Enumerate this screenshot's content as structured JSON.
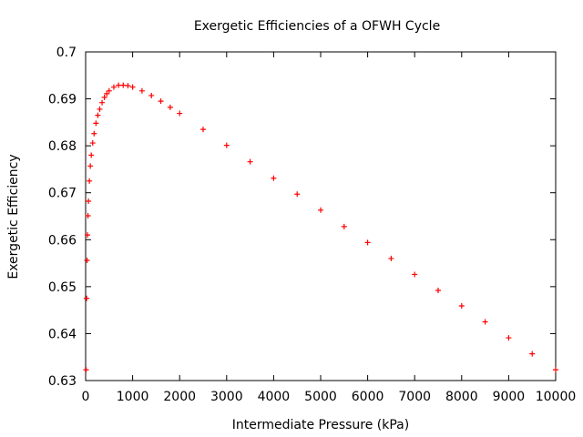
{
  "chart_data": {
    "type": "scatter",
    "title": "Exergetic Efficiencies of a OFWH Cycle",
    "xlabel": "Intermediate Pressure (kPa)",
    "ylabel": "Exergetic Efficiency",
    "xlim": [
      0,
      10000
    ],
    "ylim": [
      0.63,
      0.7
    ],
    "xticks": [
      0,
      1000,
      2000,
      3000,
      4000,
      5000,
      6000,
      7000,
      8000,
      9000,
      10000
    ],
    "yticks": [
      0.63,
      0.64,
      0.65,
      0.66,
      0.67,
      0.68,
      0.69,
      0.7
    ],
    "ytick_labels": [
      "0.63",
      "0.64",
      "0.65",
      "0.66",
      "0.67",
      "0.68",
      "0.69",
      "0.7"
    ],
    "grid": false,
    "legend": "none",
    "marker": "+",
    "marker_color": "#ff0000",
    "series": [
      {
        "x": [
          10,
          20,
          30,
          40,
          50,
          60,
          80,
          100,
          120,
          150,
          180,
          220,
          260,
          300,
          350,
          400,
          450,
          500,
          600,
          700,
          800,
          900,
          1000,
          1200,
          1400,
          1600,
          1800,
          2000,
          2500,
          3000,
          3500,
          4000,
          4500,
          5000,
          5500,
          6000,
          6500,
          7000,
          7500,
          8000,
          8500,
          9000,
          9500,
          10000
        ],
        "y": [
          0.6323,
          0.6475,
          0.6556,
          0.661,
          0.6651,
          0.6682,
          0.6725,
          0.6757,
          0.678,
          0.6806,
          0.6826,
          0.6848,
          0.6865,
          0.6878,
          0.6892,
          0.6903,
          0.6911,
          0.6917,
          0.6925,
          0.6929,
          0.6929,
          0.6928,
          0.6925,
          0.6917,
          0.6907,
          0.6895,
          0.6882,
          0.6869,
          0.6835,
          0.6801,
          0.6766,
          0.6731,
          0.6697,
          0.6663,
          0.6628,
          0.6594,
          0.656,
          0.6526,
          0.6492,
          0.6459,
          0.6425,
          0.6391,
          0.6357,
          0.6323
        ]
      }
    ]
  }
}
